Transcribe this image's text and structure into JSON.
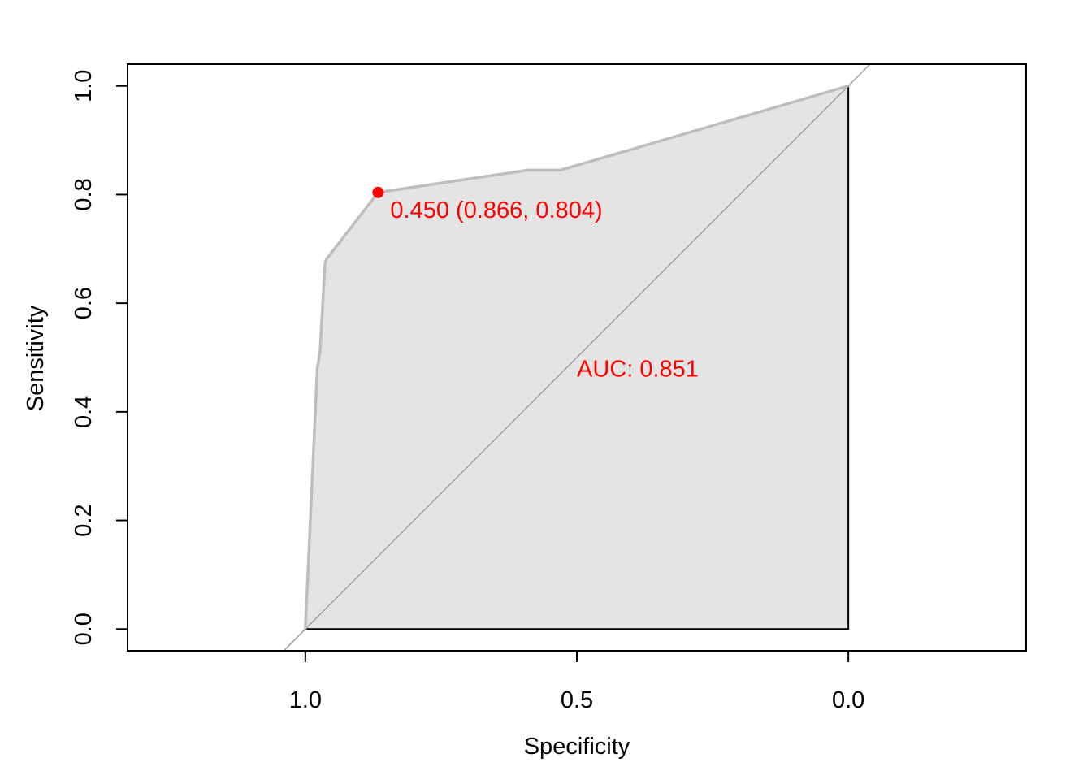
{
  "chart_data": {
    "type": "line",
    "xlabel": "Specificity",
    "ylabel": "Sensitivity",
    "x_reversed": true,
    "xlim": [
      1.3275,
      -0.3275
    ],
    "ylim": [
      -0.04,
      1.04
    ],
    "x_ticks": [
      {
        "value": 1.0,
        "label": "1.0"
      },
      {
        "value": 0.5,
        "label": "0.5"
      },
      {
        "value": 0.0,
        "label": "0.0"
      }
    ],
    "y_ticks": [
      {
        "value": 0.0,
        "label": "0.0"
      },
      {
        "value": 0.2,
        "label": "0.2"
      },
      {
        "value": 0.4,
        "label": "0.4"
      },
      {
        "value": 0.6,
        "label": "0.6"
      },
      {
        "value": 0.8,
        "label": "0.8"
      },
      {
        "value": 1.0,
        "label": "1.0"
      }
    ],
    "grid": false,
    "series": [
      {
        "x": [
          1.0,
          0.978,
          0.973,
          0.964,
          0.962,
          0.866,
          0.59,
          0.53,
          0.0
        ],
        "y": [
          0.0,
          0.48,
          0.51,
          0.67,
          0.68,
          0.804,
          0.845,
          0.845,
          1.0
        ]
      }
    ],
    "auc_polygon_fill": "#e4e4e4",
    "curve_color": "#bebebe",
    "diagonal_color": "#a0a0a0",
    "best_threshold": {
      "x": 0.866,
      "y": 0.804,
      "label": "0.450 (0.866, 0.804)",
      "color": "#ff0000"
    },
    "auc_label": {
      "text": "AUC: 0.851",
      "x": 0.5,
      "y": 0.48,
      "color": "#ff0000"
    }
  }
}
